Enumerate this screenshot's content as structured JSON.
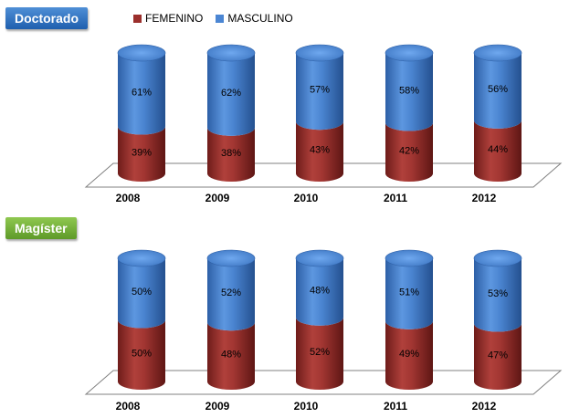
{
  "legend": {
    "fem_label": "FEMENINO",
    "mas_label": "MASCULINO"
  },
  "colors": {
    "femenino": "#9b2f2c",
    "masculino": "#4b86d3"
  },
  "chart_data": [
    {
      "type": "bar",
      "title": "Doctorado",
      "categories": [
        "2008",
        "2009",
        "2010",
        "2011",
        "2012"
      ],
      "series": [
        {
          "name": "FEMENINO",
          "values": [
            39,
            38,
            43,
            42,
            44
          ],
          "labels": [
            "39%",
            "38%",
            "43%",
            "42%",
            "44%"
          ]
        },
        {
          "name": "MASCULINO",
          "values": [
            61,
            62,
            57,
            58,
            56
          ],
          "labels": [
            "61%",
            "62%",
            "57%",
            "58%",
            "56%"
          ]
        }
      ],
      "stacked": true,
      "ylim": [
        0,
        100
      ]
    },
    {
      "type": "bar",
      "title": "Magíster",
      "categories": [
        "2008",
        "2009",
        "2010",
        "2011",
        "2012"
      ],
      "series": [
        {
          "name": "FEMENINO",
          "values": [
            50,
            48,
            52,
            49,
            47
          ],
          "labels": [
            "50%",
            "48%",
            "52%",
            "49%",
            "47%"
          ]
        },
        {
          "name": "MASCULINO",
          "values": [
            50,
            52,
            48,
            51,
            53
          ],
          "labels": [
            "50%",
            "52%",
            "48%",
            "51%",
            "53%"
          ]
        }
      ],
      "stacked": true,
      "ylim": [
        0,
        100
      ]
    }
  ]
}
